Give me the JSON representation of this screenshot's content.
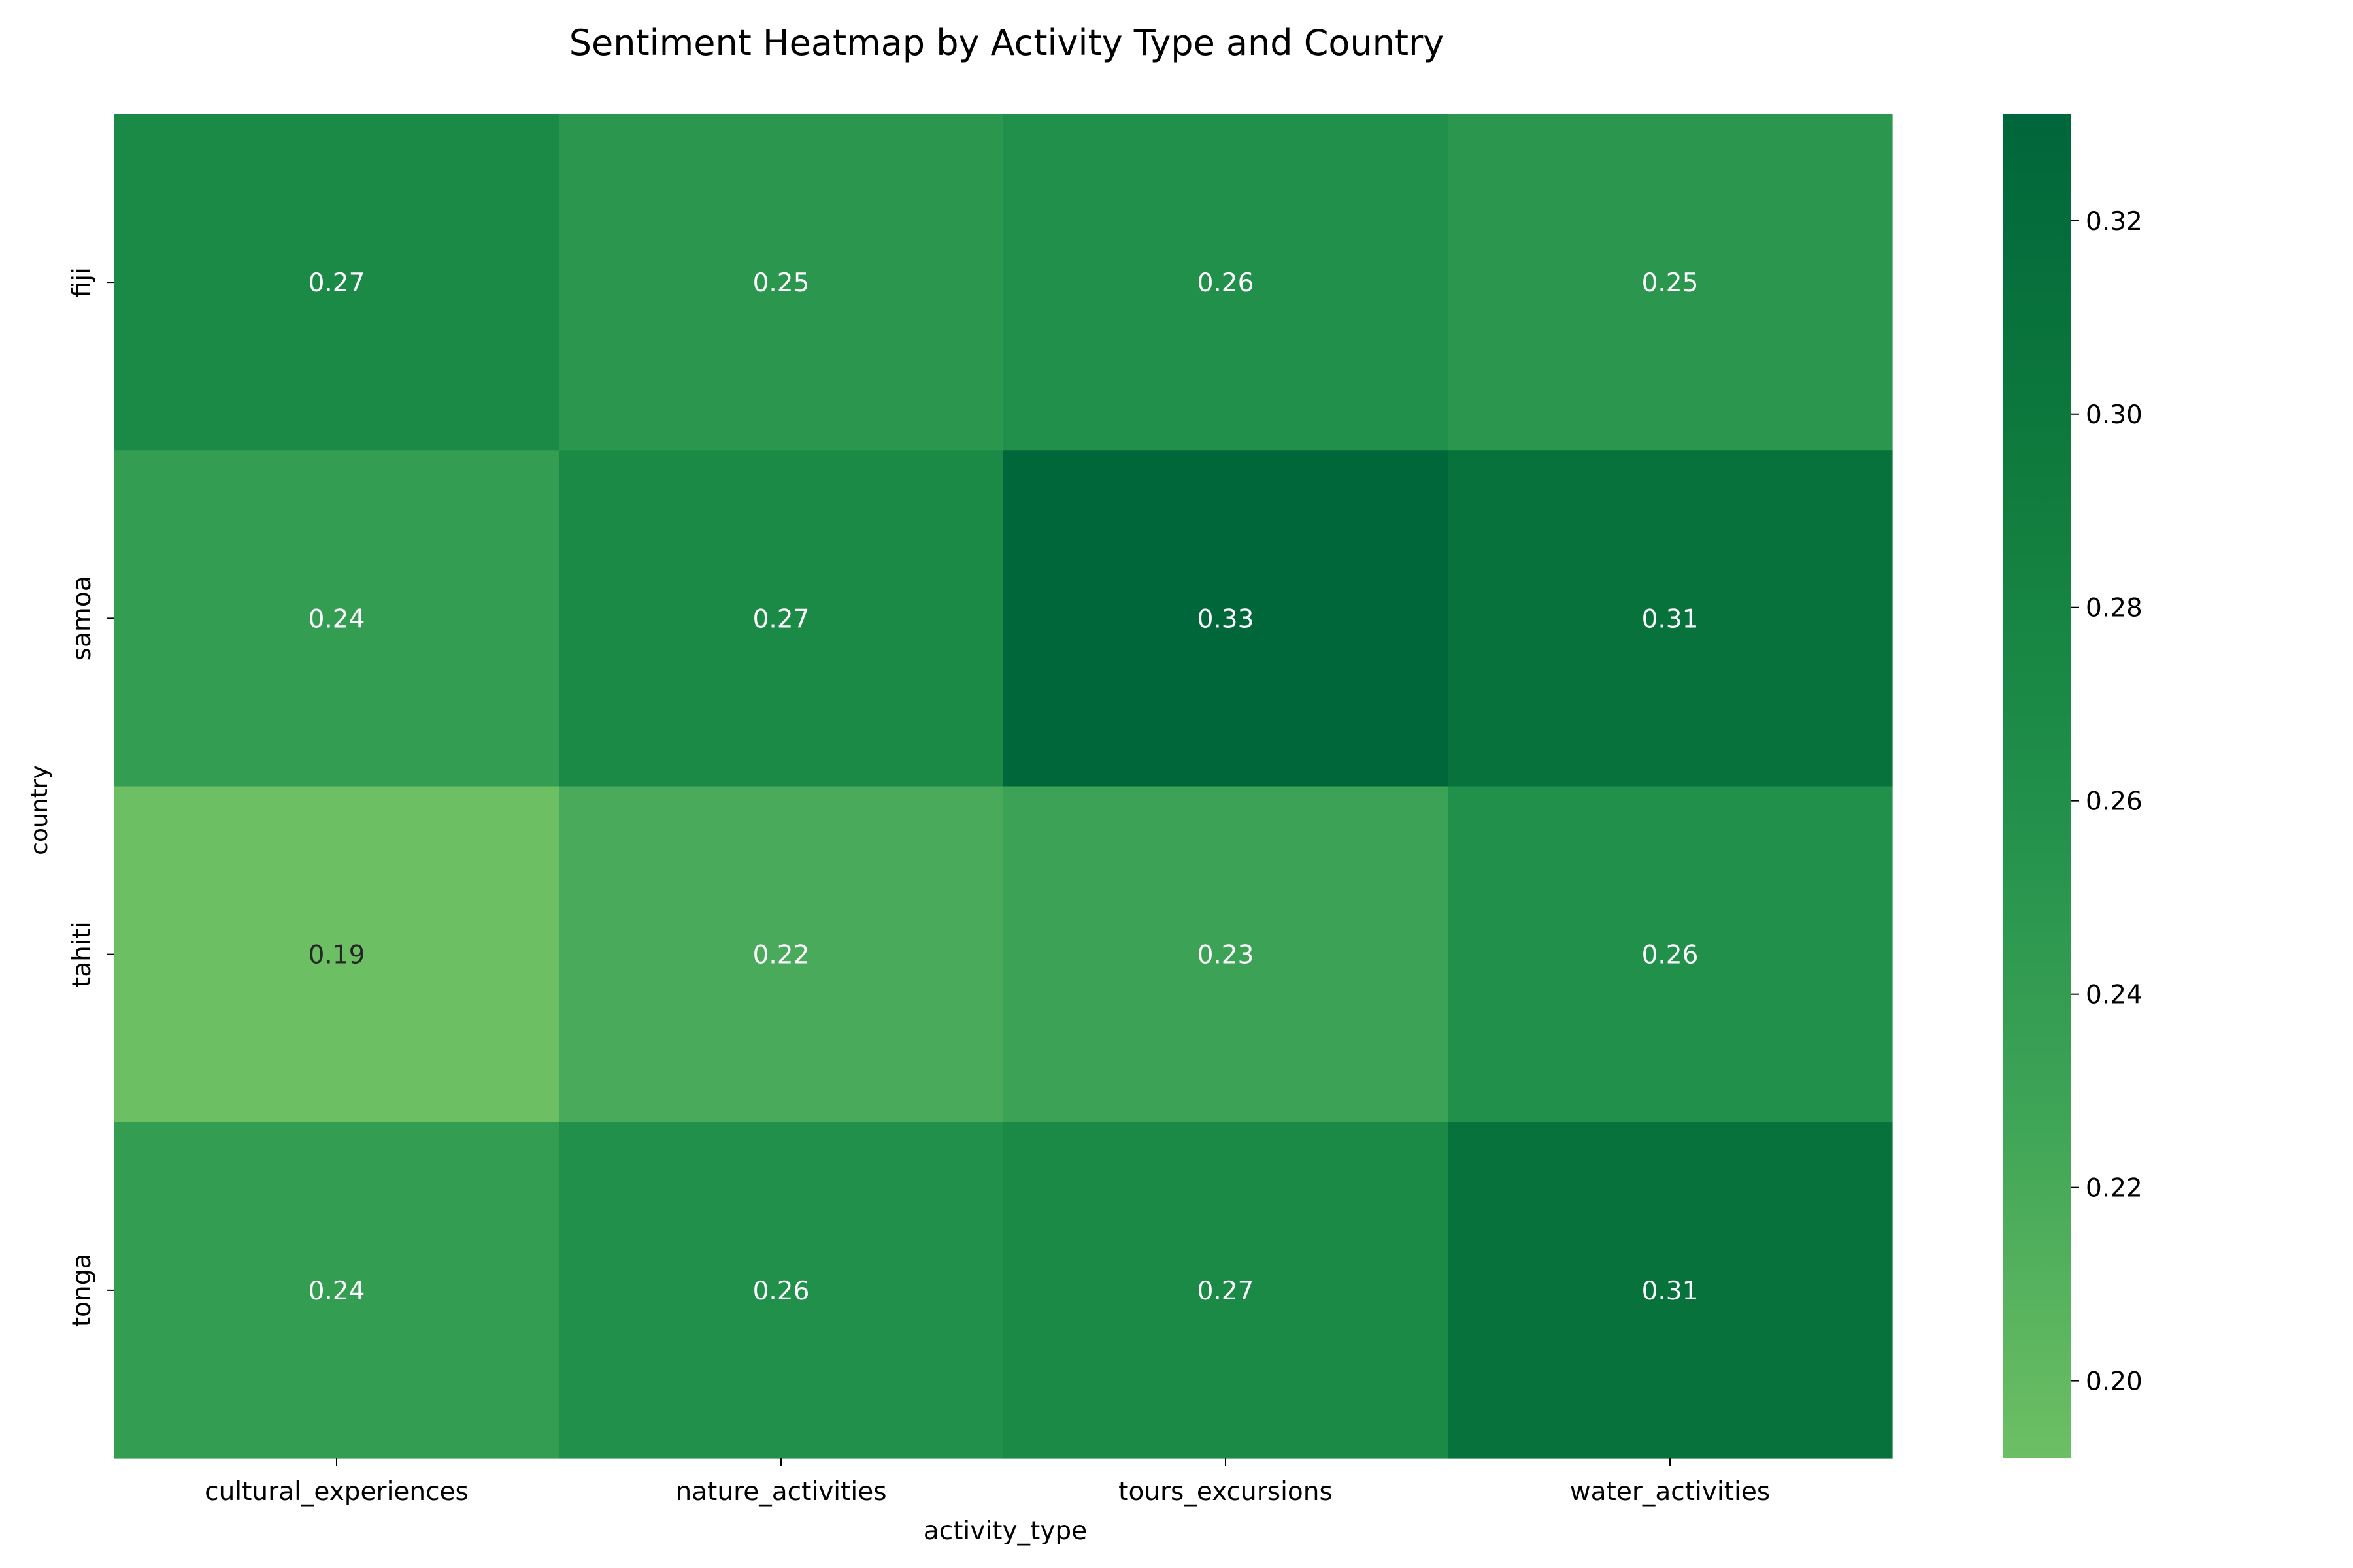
{
  "chart_data": {
    "type": "heatmap",
    "title": "Sentiment Heatmap by Activity Type and Country",
    "xlabel": "activity_type",
    "ylabel": "country",
    "columns": [
      "cultural_experiences",
      "nature_activities",
      "tours_excursions",
      "water_activities"
    ],
    "rows": [
      "fiji",
      "samoa",
      "tahiti",
      "tonga"
    ],
    "values": [
      [
        0.27,
        0.25,
        0.26,
        0.25
      ],
      [
        0.24,
        0.27,
        0.33,
        0.31
      ],
      [
        0.19,
        0.22,
        0.23,
        0.26
      ],
      [
        0.24,
        0.26,
        0.27,
        0.31
      ]
    ],
    "annotations": [
      [
        "0.27",
        "0.25",
        "0.26",
        "0.25"
      ],
      [
        "0.24",
        "0.27",
        "0.33",
        "0.31"
      ],
      [
        "0.19",
        "0.22",
        "0.23",
        "0.26"
      ],
      [
        "0.24",
        "0.26",
        "0.27",
        "0.31"
      ]
    ],
    "colorbar": {
      "vmin": 0.192,
      "vmax": 0.331,
      "ticks": [
        0.2,
        0.22,
        0.24,
        0.26,
        0.28,
        0.3,
        0.32
      ],
      "tick_labels": [
        "0.20",
        "0.22",
        "0.24",
        "0.26",
        "0.28",
        "0.30",
        "0.32"
      ]
    },
    "colormap": "Greens",
    "colormap_stops": [
      [
        0.0,
        "#6dbf64"
      ],
      [
        0.25,
        "#3fa557"
      ],
      [
        0.5,
        "#208f4a"
      ],
      [
        0.75,
        "#0e7a3c"
      ],
      [
        1.0,
        "#00663b"
      ]
    ],
    "annotation_text_dark": "#262626",
    "annotation_text_light": "#ffffff"
  }
}
